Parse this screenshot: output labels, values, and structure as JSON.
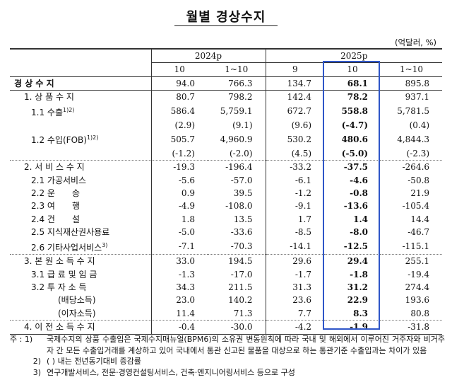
{
  "title": "월별 경상수지",
  "unit": "(억달러, %)",
  "header": {
    "year_2024": "2024p",
    "year_2025": "2025p",
    "cols": [
      "10",
      "1~10",
      "9",
      "10",
      "1~10"
    ]
  },
  "rows": [
    {
      "label": "경 상 수 지",
      "v": [
        "94.0",
        "766.3",
        "134.7",
        "68.1",
        "895.8"
      ]
    },
    {
      "label": "1. 상 품 수 지",
      "v": [
        "80.7",
        "798.2",
        "142.4",
        "78.2",
        "937.1"
      ]
    },
    {
      "label": "1.1 수출",
      "sup": "1)2)",
      "v": [
        "586.4",
        "5,759.1",
        "672.7",
        "558.8",
        "5,781.5"
      ]
    },
    {
      "label": "",
      "v": [
        "(2.9)",
        "(9.1)",
        "(9.6)",
        "(-4.7)",
        "(0.4)"
      ]
    },
    {
      "label": "1.2 수입(FOB)",
      "sup": "1)2)",
      "v": [
        "505.7",
        "4,960.9",
        "530.2",
        "480.6",
        "4,844.3"
      ]
    },
    {
      "label": "",
      "v": [
        "(-1.2)",
        "(-2.0)",
        "(4.5)",
        "(-5.0)",
        "(-2.3)"
      ]
    },
    {
      "label": "2. 서 비 스 수 지",
      "v": [
        "-19.3",
        "-196.4",
        "-33.2",
        "-37.5",
        "-264.6"
      ]
    },
    {
      "label": "2.1 가공서비스",
      "v": [
        "-5.6",
        "-57.0",
        "-6.1",
        "-4.6",
        "-50.8"
      ]
    },
    {
      "label": "2.2 운　　송",
      "v": [
        "0.9",
        "39.5",
        "-1.2",
        "-0.8",
        "21.9"
      ]
    },
    {
      "label": "2.3 여　　행",
      "v": [
        "-4.9",
        "-108.0",
        "-9.1",
        "-13.6",
        "-105.4"
      ]
    },
    {
      "label": "2.4 건　　설",
      "v": [
        "1.8",
        "13.5",
        "1.7",
        "1.4",
        "14.4"
      ]
    },
    {
      "label": "2.5 지식재산권사용료",
      "v": [
        "-5.0",
        "-33.6",
        "-8.5",
        "-8.0",
        "-46.7"
      ]
    },
    {
      "label": "2.6 기타사업서비스",
      "sup": "3)",
      "v": [
        "-7.1",
        "-70.3",
        "-14.1",
        "-12.5",
        "-115.1"
      ]
    },
    {
      "label": "3. 본 원 소 득 수 지",
      "v": [
        "33.0",
        "194.5",
        "29.6",
        "29.4",
        "255.1"
      ]
    },
    {
      "label": "3.1 급 료 및 임 금",
      "v": [
        "-1.3",
        "-17.0",
        "-1.7",
        "-1.8",
        "-19.4"
      ]
    },
    {
      "label": "3.2 투 자 소 득",
      "v": [
        "34.3",
        "211.5",
        "31.3",
        "31.2",
        "274.4"
      ]
    },
    {
      "label": "(배당소득)",
      "v": [
        "23.0",
        "140.2",
        "23.6",
        "22.9",
        "193.6"
      ]
    },
    {
      "label": "(이자소득)",
      "v": [
        "11.4",
        "71.3",
        "7.7",
        "8.3",
        "80.8"
      ]
    },
    {
      "label": "4. 이 전 소 득 수 지",
      "v": [
        "-0.4",
        "-30.0",
        "-4.2",
        "-1.9",
        "-31.8"
      ]
    }
  ],
  "notes": {
    "lead": "주 : 1)",
    "n1": "국제수지의 상품 수출입은 국제수지매뉴얼(BPM6)의 소유권 변동원칙에 따라 국내 및 해외에서 이루어진 거주자와 비거주자 간 모든 수출입거래를 계상하고 있어 국내에서 통관 신고된 물품을 대상으로 하는 통관기준 수출입과는 차이가 있음",
    "lead2": "2)",
    "n2": "( ) 내는 전년동기대비 증감률",
    "lead3": "3)",
    "n3": "연구개발서비스, 전문·경영컨설팅서비스, 건축·엔지니어링서비스 등으로 구성"
  },
  "colors": {
    "highlight_box": "#2f56c8"
  }
}
